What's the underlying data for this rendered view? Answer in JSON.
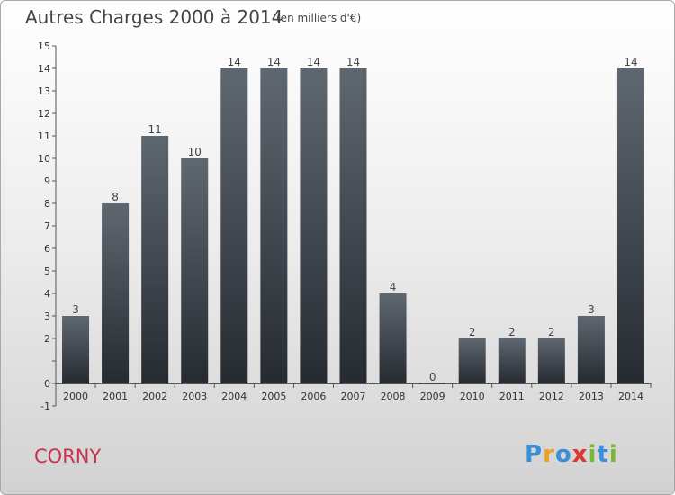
{
  "chart_data": {
    "type": "bar",
    "title": "Autres Charges 2000 à 2014",
    "subtitle": "(en milliers d'€)",
    "categories": [
      "2000",
      "2001",
      "2002",
      "2003",
      "2004",
      "2005",
      "2006",
      "2007",
      "2008",
      "2009",
      "2010",
      "2011",
      "2012",
      "2013",
      "2014"
    ],
    "values": [
      3,
      8,
      11,
      10,
      14,
      14,
      14,
      14,
      4,
      0,
      2,
      2,
      2,
      3,
      14
    ],
    "value_labels": [
      "3",
      "8",
      "11",
      "10",
      "14",
      "14",
      "14",
      "14",
      "4",
      "0",
      "2",
      "2",
      "2",
      "3",
      "14"
    ],
    "ylim": [
      -1,
      15
    ],
    "yticks": [
      -1,
      0,
      1,
      2,
      3,
      4,
      5,
      6,
      7,
      8,
      9,
      10,
      11,
      12,
      13,
      14,
      15
    ],
    "ytick_labels": [
      "-1",
      "0",
      "",
      "2",
      "3",
      "4",
      "5",
      "6",
      "7",
      "8",
      "9",
      "10",
      "11",
      "12",
      "13",
      "14",
      "15"
    ],
    "xlabel": "",
    "ylabel": "",
    "grid": false,
    "bar_color": "#3c434c"
  },
  "place_name": "CORNY",
  "logo": {
    "letters": [
      "P",
      "r",
      "o",
      "x",
      "i",
      "t",
      "i"
    ],
    "colors": [
      "#3a8fd6",
      "#f0a020",
      "#3a8fd6",
      "#e0352b",
      "#7ab833",
      "#3a8fd6",
      "#7ab833"
    ]
  }
}
